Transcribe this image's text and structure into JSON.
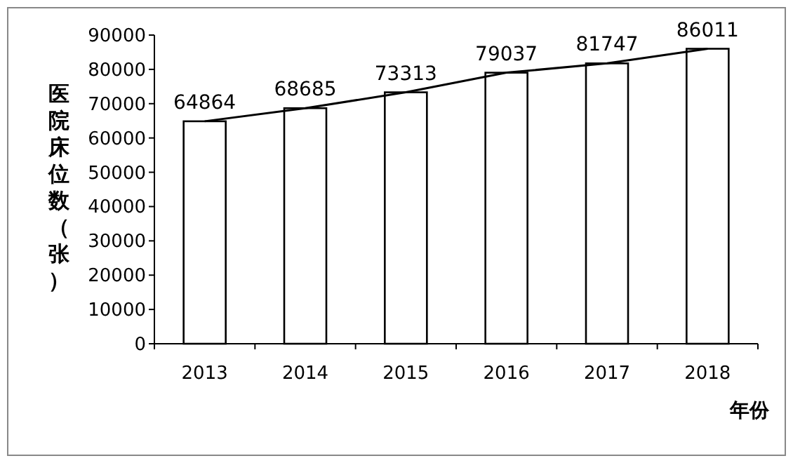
{
  "chart_data": {
    "type": "bar",
    "xlabel": "年份",
    "ylabel": "医院床位数（张）",
    "categories": [
      "2013",
      "2014",
      "2015",
      "2016",
      "2017",
      "2018"
    ],
    "series": [
      {
        "color": "#ffffff",
        "values": [
          64864,
          68685,
          73313,
          79037,
          81747,
          86011
        ],
        "value_labels": [
          "64864",
          "68685",
          "73313",
          "79037",
          "81747",
          "86011"
        ]
      },
      {
        "type": "line",
        "color": "#000000",
        "values": [
          64864,
          68685,
          73313,
          79037,
          81747,
          86011
        ]
      }
    ],
    "ylim": [
      0,
      90000
    ],
    "yticks": [
      0,
      10000,
      20000,
      30000,
      40000,
      50000,
      60000,
      70000,
      80000,
      90000
    ],
    "line_style": "solid"
  }
}
